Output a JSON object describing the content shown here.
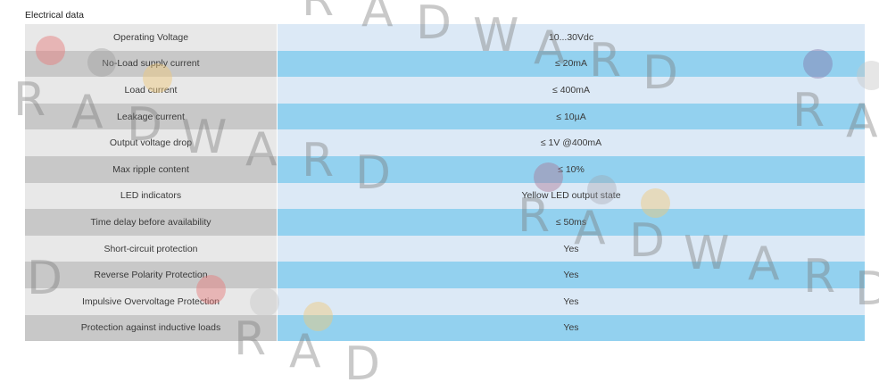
{
  "section_title": "Electrical data",
  "colors": {
    "label_odd": "#e8e8e8",
    "label_even": "#c8c8c8",
    "value_odd": "#dce9f6",
    "value_even": "#93d1ef"
  },
  "rows": [
    {
      "label": "Operating Voltage",
      "value": "10...30Vdc"
    },
    {
      "label": "No-Load supply current",
      "value": "≤ 20mA"
    },
    {
      "label": "Load current",
      "value": "≤ 400mA"
    },
    {
      "label": "Leakage current",
      "value": "≤ 10µA"
    },
    {
      "label": "Output voltage drop",
      "value": "≤ 1V @400mA"
    },
    {
      "label": "Max ripple content",
      "value": "≤ 10%"
    },
    {
      "label": "LED indicators",
      "value": "Yellow LED output state"
    },
    {
      "label": "Time delay before availability",
      "value": "≤ 50ms"
    },
    {
      "label": "Short-circuit protection",
      "value": "Yes"
    },
    {
      "label": "Reverse Polarity Protection",
      "value": "Yes"
    },
    {
      "label": "Impulsive Overvoltage Protection",
      "value": "Yes"
    },
    {
      "label": "Protection against inductive loads",
      "value": "Yes"
    }
  ],
  "watermark": {
    "text": "RADWARD"
  }
}
